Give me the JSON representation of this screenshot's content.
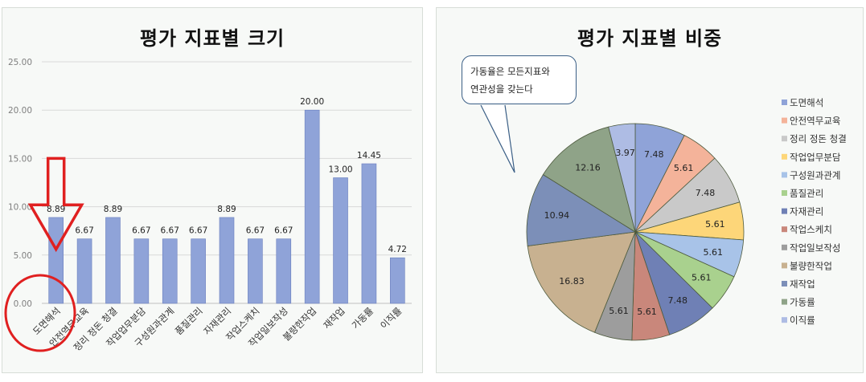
{
  "bar_title": "평가 지표별 크기",
  "pie_title": "평가 지표별 비중",
  "callout_text_1": "가동율은 모든지표와",
  "callout_text_2": "연관성을 갖는다",
  "chart_data": [
    {
      "type": "bar",
      "title": "평가 지표별 크기",
      "categories": [
        "도면해석",
        "안전역무교육",
        "정리 정돈 청결",
        "작업업무분담",
        "구성원과관계",
        "품질관리",
        "자재관리",
        "작업스케치",
        "작업일보작성",
        "불량한작업",
        "재작업",
        "가동률",
        "이직률"
      ],
      "values": [
        8.89,
        6.67,
        8.89,
        6.67,
        6.67,
        6.67,
        8.89,
        6.67,
        6.67,
        20.0,
        13.0,
        14.45,
        4.72
      ],
      "data_labels": [
        "8.89",
        "6.67",
        "8.89",
        "6.67",
        "6.67",
        "6.67",
        "8.89",
        "6.67",
        "6.67",
        "20.00",
        "13.00",
        "14.45",
        "4.72"
      ],
      "y_ticks": [
        "0.00",
        "5.00",
        "10.00",
        "15.00",
        "20.00",
        "25.00"
      ],
      "ylim": [
        0,
        25
      ],
      "grid": true,
      "bar_color": "#8fa3d8",
      "annotations": [
        "red down arrow over 도면해석 bar",
        "red circle around 도면해석 label"
      ],
      "annotation_color": "#e02020"
    },
    {
      "type": "pie",
      "title": "평가 지표별 비중",
      "labels": [
        "도면해석",
        "안전역무교육",
        "정리 정돈 청결",
        "작업업무분담",
        "구성원과관계",
        "품질관리",
        "자재관리",
        "작업스케치",
        "작업일보작성",
        "불량한작업",
        "재작업",
        "가동률",
        "이직률"
      ],
      "values": [
        7.48,
        5.61,
        7.48,
        5.61,
        5.61,
        5.61,
        7.48,
        5.61,
        5.61,
        16.83,
        10.94,
        12.16,
        3.97
      ],
      "data_labels": [
        "7.48",
        "5.61",
        "7.48",
        "5.61",
        "5.61",
        "5.61",
        "7.48",
        "5.61",
        "5.61",
        "16.83",
        "10.94",
        "12.16",
        "3.97"
      ],
      "colors": [
        "#8fa3d8",
        "#f4b39a",
        "#c9c9c9",
        "#fdd679",
        "#a8c3e8",
        "#a9d18e",
        "#6f80b5",
        "#c9877b",
        "#9d9d9d",
        "#c8b190",
        "#7c8fb8",
        "#8fa388",
        "#aebce4"
      ],
      "legend_position": "right"
    }
  ]
}
